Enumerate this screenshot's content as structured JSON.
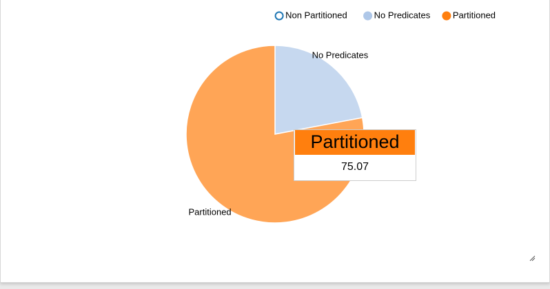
{
  "chart_data": {
    "type": "pie",
    "categories": [
      "Non Partitioned",
      "No Predicates",
      "Partitioned"
    ],
    "values": [
      null,
      21.2,
      75.07
    ],
    "colors": [
      "#1f77b4",
      "#aec7e8",
      "#ff7f0e"
    ],
    "disabled": [
      true,
      false,
      false
    ],
    "tooltip_index": 2
  }
}
